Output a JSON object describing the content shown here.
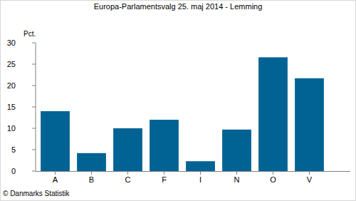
{
  "chart_data": {
    "type": "bar",
    "title": "Europa-Parlamentsvalg 25. maj 2014 - Lemming",
    "y_label": "Pct.",
    "categories": [
      "A",
      "B",
      "C",
      "F",
      "I",
      "N",
      "O",
      "V"
    ],
    "values": [
      14.0,
      4.2,
      10.0,
      12.0,
      2.3,
      9.7,
      26.6,
      21.7
    ],
    "color": "#006394",
    "ylim": [
      0,
      30
    ],
    "yticks": [
      0,
      5,
      10,
      15,
      20,
      25,
      30
    ],
    "grid": false,
    "annotations": [
      "© Danmarks Statistik"
    ]
  }
}
